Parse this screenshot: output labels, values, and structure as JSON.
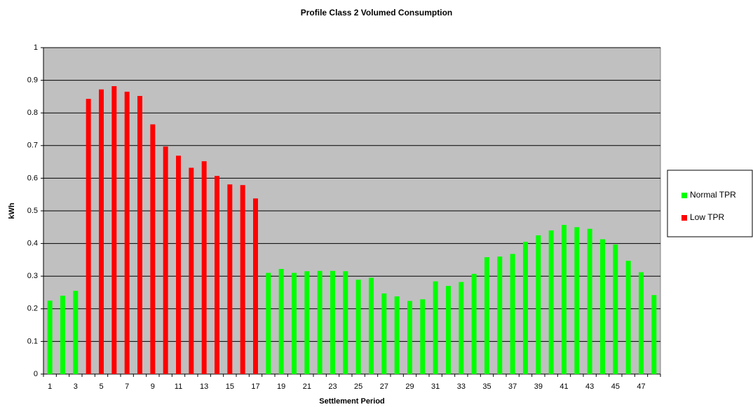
{
  "chart_data": {
    "type": "bar",
    "title": "Profile Class 2 Volumed Consumption",
    "x_label": "Settlement Period",
    "y_label": "kWh",
    "categories": [
      1,
      null,
      3,
      null,
      5,
      null,
      7,
      null,
      9,
      null,
      11,
      null,
      13,
      null,
      15,
      null,
      17,
      null,
      19,
      null,
      21,
      null,
      23,
      null,
      25,
      null,
      27,
      null,
      29,
      null,
      31,
      null,
      33,
      null,
      35,
      null,
      37,
      null,
      39,
      null,
      41,
      null,
      43,
      null,
      45,
      null,
      47,
      null
    ],
    "series": [
      {
        "name": "Normal TPR",
        "color": "#00ff00",
        "values": [
          0.225,
          0.24,
          0.255,
          null,
          null,
          null,
          null,
          null,
          null,
          null,
          null,
          null,
          null,
          null,
          null,
          null,
          null,
          0.31,
          0.322,
          0.31,
          0.315,
          0.316,
          0.316,
          0.315,
          0.289,
          0.295,
          0.247,
          0.238,
          0.224,
          0.229,
          0.284,
          0.27,
          0.282,
          0.307,
          0.358,
          0.36,
          0.368,
          0.405,
          0.425,
          0.44,
          0.457,
          0.45,
          0.445,
          0.413,
          0.397,
          0.347,
          0.312,
          0.242
        ]
      },
      {
        "name": "Low TPR",
        "color": "#ff0000",
        "values": [
          null,
          null,
          null,
          0.843,
          0.872,
          0.882,
          0.865,
          0.852,
          0.765,
          0.697,
          0.669,
          0.632,
          0.652,
          0.607,
          0.581,
          0.579,
          0.538,
          null,
          null,
          null,
          null,
          null,
          null,
          null,
          null,
          null,
          null,
          null,
          null,
          null,
          null,
          null,
          null,
          null,
          null,
          null,
          null,
          null,
          null,
          null,
          null,
          null,
          null,
          null,
          null,
          null,
          null,
          null
        ]
      }
    ],
    "ylim": [
      0,
      1
    ],
    "yticks": [
      0,
      0.1,
      0.2,
      0.3,
      0.4,
      0.5,
      0.6,
      0.7,
      0.8,
      0.9,
      1
    ],
    "grid": true,
    "legend": "right"
  }
}
